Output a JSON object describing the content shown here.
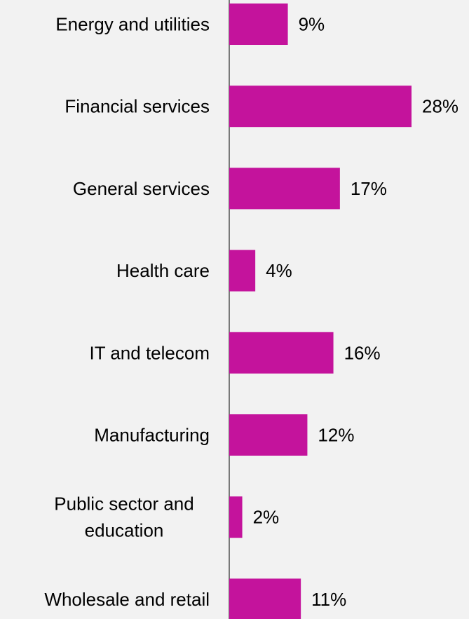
{
  "chart_data": {
    "type": "bar",
    "orientation": "horizontal",
    "categories": [
      "Energy and utilities",
      "Financial services",
      "General services",
      "Health care",
      "IT and telecom",
      "Manufacturing",
      "Public sector and education",
      "Wholesale and retail"
    ],
    "category_lines": [
      [
        "Energy and utilities"
      ],
      [
        "Financial services"
      ],
      [
        "General services"
      ],
      [
        "Health care"
      ],
      [
        "IT and telecom"
      ],
      [
        "Manufacturing"
      ],
      [
        "Public sector and",
        "education"
      ],
      [
        "Wholesale and retail"
      ]
    ],
    "values": [
      9,
      28,
      17,
      4,
      16,
      12,
      2,
      11
    ],
    "value_labels": [
      "9%",
      "28%",
      "17%",
      "4%",
      "16%",
      "12%",
      "2%",
      "11%"
    ],
    "xlim": [
      0,
      28
    ],
    "grid": false,
    "legend": "none",
    "bar_color": "#c4139c",
    "axis_color": "#000000",
    "background": "#f2f2f2"
  }
}
